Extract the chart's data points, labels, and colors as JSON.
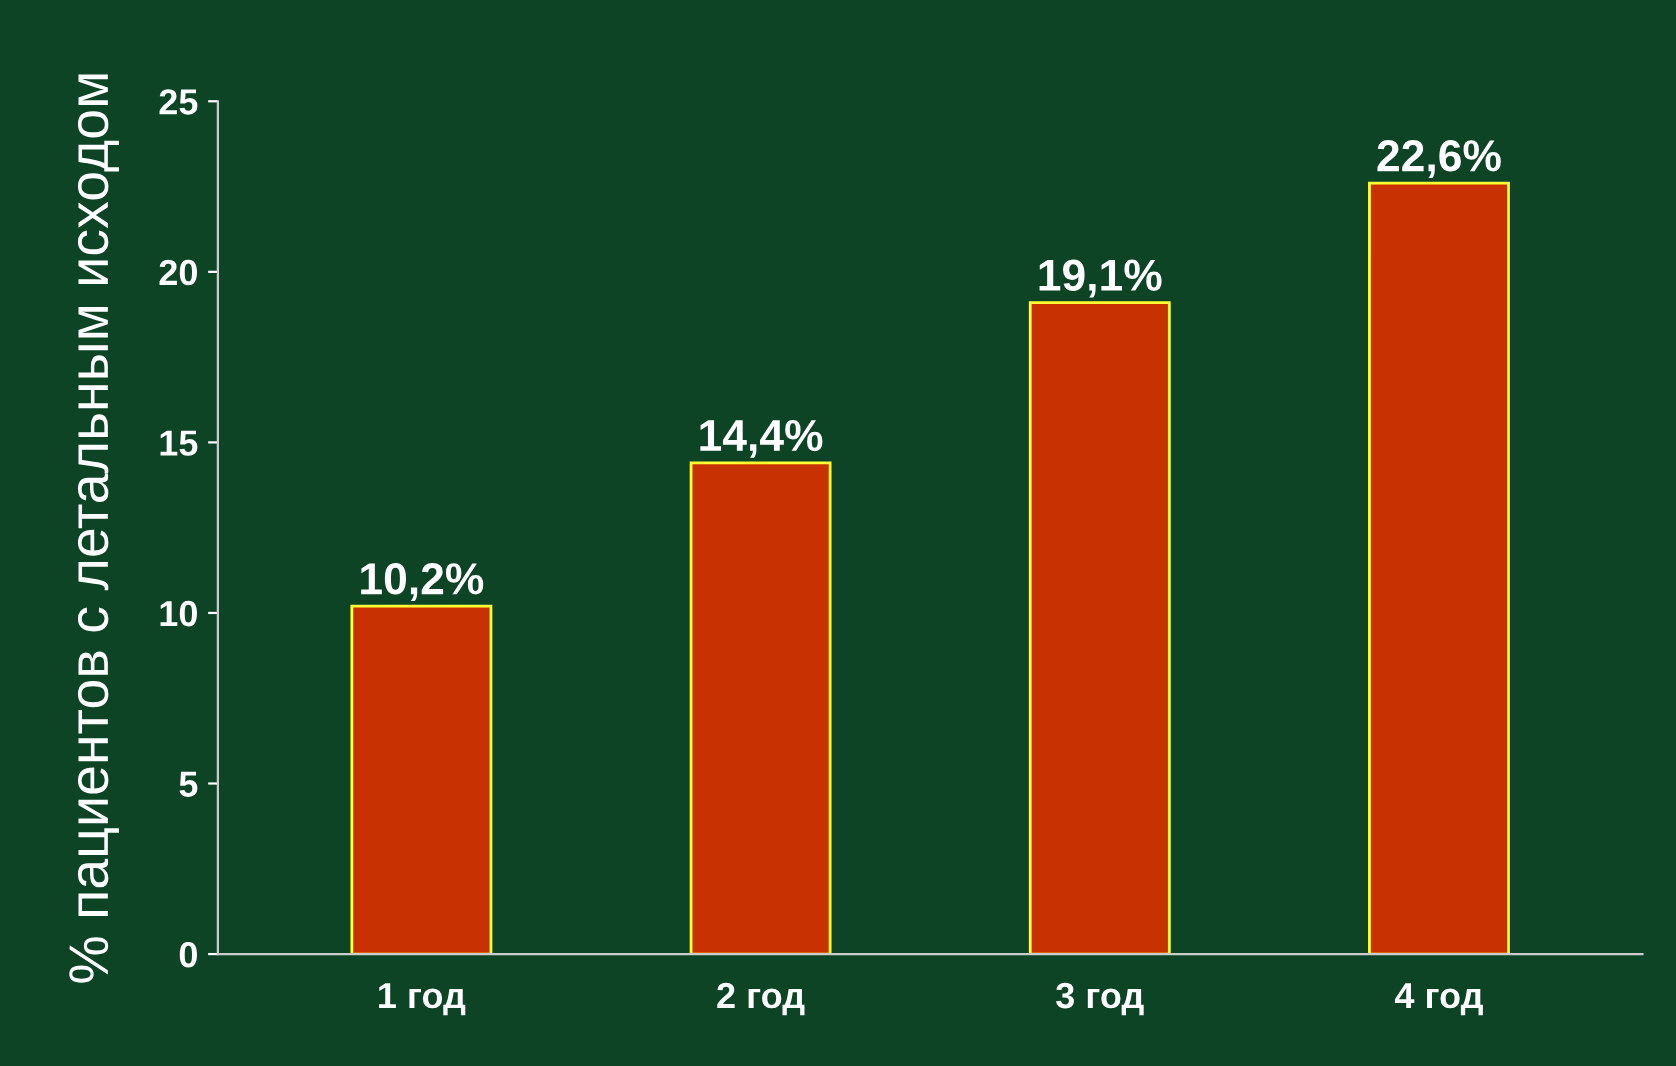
{
  "chart_data": {
    "type": "bar",
    "ylabel": "% пациентов с летальным исходом",
    "categories": [
      "1 год",
      "2 год",
      "3 год",
      "4 год"
    ],
    "values": [
      10.2,
      14.4,
      19.1,
      22.6
    ],
    "value_labels": [
      "10,2%",
      "14,4%",
      "19,1%",
      "22,6%"
    ],
    "color": "#c83200",
    "ylim": [
      0,
      25
    ],
    "yticks": [
      0,
      5,
      10,
      15,
      20,
      25
    ],
    "grid": false,
    "legend": false
  }
}
